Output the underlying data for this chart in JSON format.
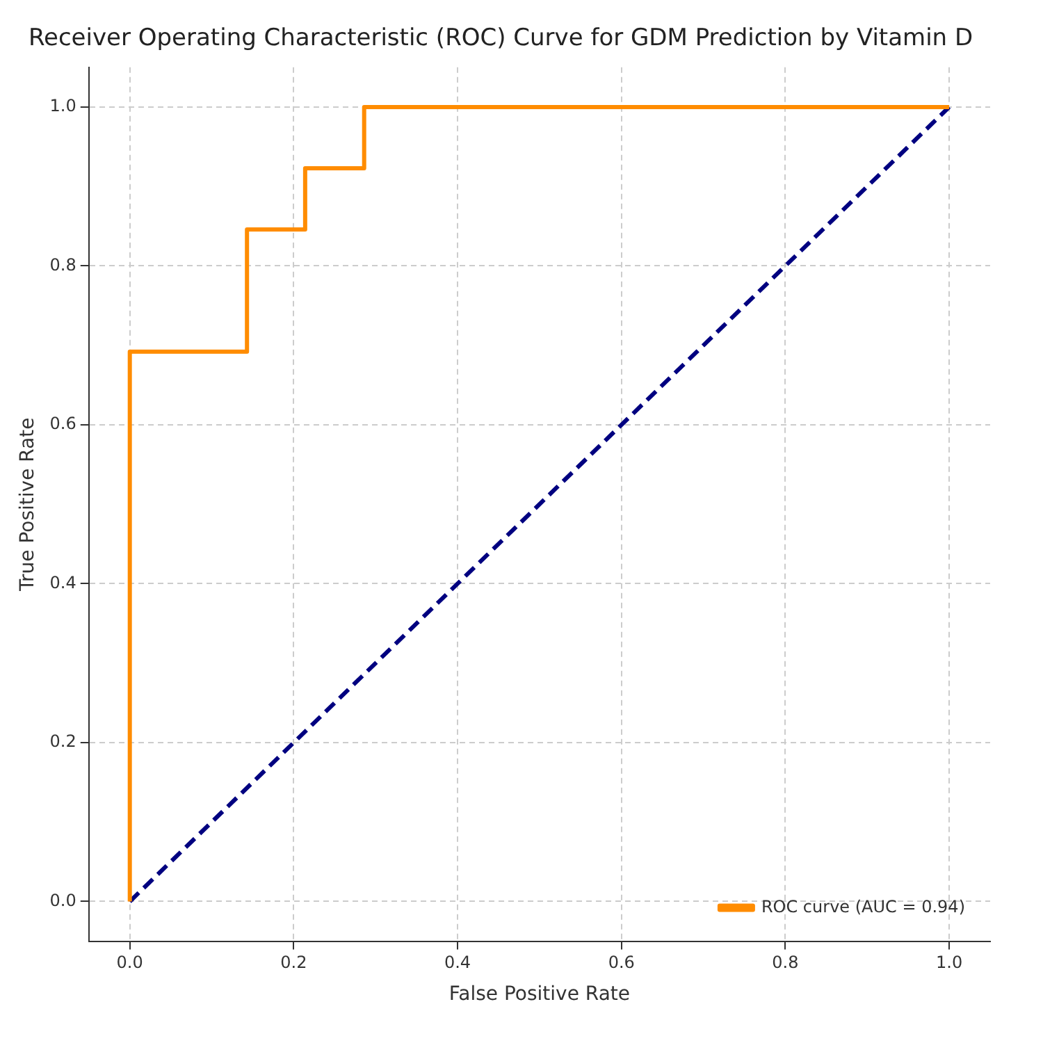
{
  "chart_data": {
    "type": "line",
    "title": "Receiver Operating Characteristic (ROC) Curve for GDM Prediction by Vitamin D",
    "xlabel": "False Positive Rate",
    "ylabel": "True Positive Rate",
    "series": [
      {
        "name": "ROC curve (AUC = 0.94)",
        "color": "#ff8c00",
        "x": [
          0,
          0,
          0.143,
          0.143,
          0.214,
          0.214,
          0.286,
          0.286,
          1
        ],
        "values": [
          0,
          0.692,
          0.692,
          0.846,
          0.846,
          0.923,
          0.923,
          1,
          1
        ],
        "line_style": "solid"
      },
      {
        "color": "#000080",
        "x": [
          0,
          1
        ],
        "values": [
          0,
          1
        ],
        "line_style": "dashed"
      }
    ],
    "xlim": [
      -0.05,
      1.05
    ],
    "ylim": [
      -0.05,
      1.05
    ],
    "xticks": [
      {
        "value": 0,
        "label": "0.0"
      },
      {
        "value": 0.2,
        "label": "0.2"
      },
      {
        "value": 0.4,
        "label": "0.4"
      },
      {
        "value": 0.6,
        "label": "0.6"
      },
      {
        "value": 0.8,
        "label": "0.8"
      },
      {
        "value": 1,
        "label": "1.0"
      }
    ],
    "yticks": [
      {
        "value": 0,
        "label": "0.0"
      },
      {
        "value": 0.2,
        "label": "0.2"
      },
      {
        "value": 0.4,
        "label": "0.4"
      },
      {
        "value": 0.6,
        "label": "0.6"
      },
      {
        "value": 0.8,
        "label": "0.8"
      },
      {
        "value": 1,
        "label": "1.0"
      }
    ],
    "grid": true,
    "legend": "bottom right",
    "marker": "none"
  }
}
